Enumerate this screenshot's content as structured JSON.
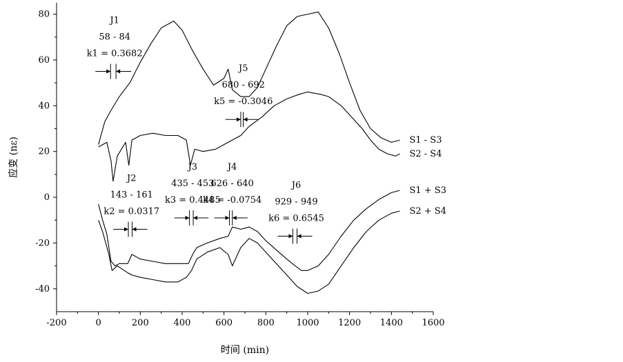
{
  "chart_data": {
    "type": "line",
    "title": "",
    "xlabel": "时间 (min)",
    "ylabel": "应变 (nε)",
    "xlim": [
      -200,
      1600
    ],
    "ylim": [
      -50,
      85
    ],
    "xticks": [
      "-200",
      "0",
      "200",
      "400",
      "600",
      "800",
      "1000",
      "1200",
      "1400",
      "1600"
    ],
    "yticks": [
      "-40",
      "-20",
      "0",
      "20",
      "40",
      "60",
      "80"
    ],
    "grid": false,
    "legend": "none",
    "series": [
      {
        "name": "S1 - S3",
        "x": [
          0,
          30,
          60,
          100,
          150,
          200,
          250,
          300,
          360,
          400,
          450,
          500,
          550,
          600,
          620,
          640,
          680,
          720,
          760,
          800,
          850,
          900,
          950,
          1000,
          1050,
          1100,
          1150,
          1200,
          1250,
          1300,
          1350,
          1400,
          1440
        ],
        "y": [
          23,
          33,
          38,
          44,
          50,
          59,
          67,
          74,
          77,
          73,
          64,
          56,
          49,
          52,
          56,
          47,
          44,
          44,
          48,
          56,
          66,
          75,
          79,
          80,
          81,
          74,
          63,
          50,
          38,
          30,
          26,
          24,
          25
        ]
      },
      {
        "name": "S2 - S4",
        "x": [
          0,
          40,
          60,
          70,
          90,
          130,
          145,
          160,
          200,
          260,
          320,
          380,
          420,
          440,
          460,
          500,
          560,
          620,
          680,
          720,
          780,
          840,
          900,
          960,
          1000,
          1060,
          1100,
          1160,
          1200,
          1260,
          1300,
          1340,
          1380,
          1420,
          1440
        ],
        "y": [
          22,
          24,
          16,
          7,
          18,
          24,
          14,
          25,
          27,
          28,
          27,
          27,
          25,
          14,
          21,
          20,
          21,
          24,
          27,
          31,
          35,
          40,
          43,
          45,
          46,
          45,
          44,
          40,
          36,
          30,
          25,
          21,
          19,
          18,
          19
        ]
      },
      {
        "name": "S1 + S3",
        "x": [
          0,
          20,
          40,
          60,
          80,
          100,
          140,
          160,
          200,
          260,
          320,
          380,
          430,
          450,
          470,
          520,
          580,
          620,
          640,
          680,
          720,
          760,
          800,
          850,
          900,
          940,
          970,
          1000,
          1050,
          1100,
          1160,
          1220,
          1280,
          1340,
          1400,
          1440
        ],
        "y": [
          -3,
          -10,
          -16,
          -28,
          -30,
          -29,
          -29,
          -25,
          -27,
          -28,
          -29,
          -29,
          -29,
          -25,
          -22,
          -20,
          -18,
          -17,
          -13,
          -14,
          -13,
          -15,
          -19,
          -23,
          -27,
          -30,
          -32,
          -32,
          -30,
          -25,
          -17,
          -10,
          -5,
          -1,
          2,
          3
        ]
      },
      {
        "name": "S2 + S4",
        "x": [
          0,
          20,
          50,
          65,
          90,
          140,
          160,
          200,
          260,
          320,
          380,
          420,
          445,
          470,
          520,
          580,
          620,
          640,
          680,
          720,
          760,
          800,
          850,
          900,
          950,
          1000,
          1050,
          1100,
          1160,
          1220,
          1280,
          1340,
          1400,
          1440
        ],
        "y": [
          -10,
          -15,
          -25,
          -32,
          -30,
          -33,
          -34,
          -35,
          -36,
          -37,
          -37,
          -35,
          -32,
          -27,
          -24,
          -22,
          -25,
          -30,
          -22,
          -18,
          -20,
          -24,
          -29,
          -34,
          -39,
          -42,
          -41,
          -38,
          -30,
          -22,
          -15,
          -10,
          -7,
          -6
        ]
      }
    ],
    "annotations": [
      {
        "label": "J1",
        "range": "58 - 84",
        "k": "k1 = 0.3682",
        "x1": 58,
        "x2": 84,
        "y": 55
      },
      {
        "label": "J2",
        "range": "143 - 161",
        "k": "k2 = 0.0317",
        "x1": 143,
        "x2": 161,
        "y": -14
      },
      {
        "label": "J3",
        "range": "435 - 453",
        "k": "k3 = 0.4485",
        "x1": 435,
        "x2": 453,
        "y": -9
      },
      {
        "label": "J4",
        "range": "626 - 640",
        "k": "k4 = -0.0754",
        "x1": 626,
        "x2": 640,
        "y": -9
      },
      {
        "label": "J5",
        "range": "680 - 692",
        "k": "k5 = -0.3046",
        "x1": 680,
        "x2": 692,
        "y": 34
      },
      {
        "label": "J6",
        "range": "929 - 949",
        "k": "k6 = 0.6545",
        "x1": 929,
        "x2": 949,
        "y": -17
      }
    ]
  }
}
